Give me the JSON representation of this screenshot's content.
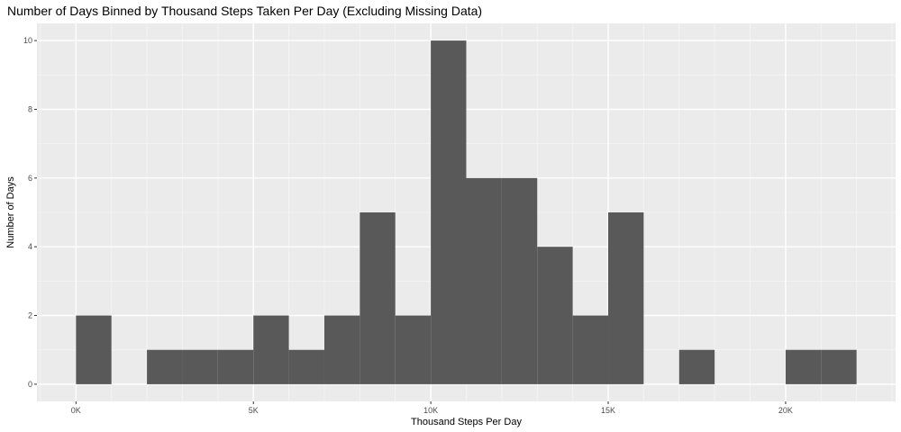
{
  "chart_data": {
    "type": "bar",
    "title": "Number of Days Binned by Thousand Steps Taken Per Day (Excluding Missing Data)",
    "xlabel": "Thousand Steps Per Day",
    "ylabel": "Number of Days",
    "xlim": [
      -1100,
      23100
    ],
    "ylim": [
      -0.5,
      10.5
    ],
    "x_ticks": [
      {
        "value": 0,
        "label": "0K"
      },
      {
        "value": 5000,
        "label": "5K"
      },
      {
        "value": 10000,
        "label": "10K"
      },
      {
        "value": 15000,
        "label": "15K"
      },
      {
        "value": 20000,
        "label": "20K"
      }
    ],
    "y_ticks": [
      {
        "value": 0,
        "label": "0"
      },
      {
        "value": 2,
        "label": "2"
      },
      {
        "value": 4,
        "label": "4"
      },
      {
        "value": 6,
        "label": "6"
      },
      {
        "value": 8,
        "label": "8"
      },
      {
        "value": 10,
        "label": "10"
      }
    ],
    "bin_width": 1000,
    "bins": [
      {
        "start": 0,
        "end": 1000,
        "count": 2
      },
      {
        "start": 1000,
        "end": 2000,
        "count": 0
      },
      {
        "start": 2000,
        "end": 3000,
        "count": 1
      },
      {
        "start": 3000,
        "end": 4000,
        "count": 1
      },
      {
        "start": 4000,
        "end": 5000,
        "count": 1
      },
      {
        "start": 5000,
        "end": 6000,
        "count": 2
      },
      {
        "start": 6000,
        "end": 7000,
        "count": 1
      },
      {
        "start": 7000,
        "end": 8000,
        "count": 2
      },
      {
        "start": 8000,
        "end": 9000,
        "count": 5
      },
      {
        "start": 9000,
        "end": 10000,
        "count": 2
      },
      {
        "start": 10000,
        "end": 11000,
        "count": 10
      },
      {
        "start": 11000,
        "end": 12000,
        "count": 6
      },
      {
        "start": 12000,
        "end": 13000,
        "count": 6
      },
      {
        "start": 13000,
        "end": 14000,
        "count": 4
      },
      {
        "start": 14000,
        "end": 15000,
        "count": 2
      },
      {
        "start": 15000,
        "end": 16000,
        "count": 5
      },
      {
        "start": 16000,
        "end": 17000,
        "count": 0
      },
      {
        "start": 17000,
        "end": 18000,
        "count": 1
      },
      {
        "start": 18000,
        "end": 19000,
        "count": 0
      },
      {
        "start": 19000,
        "end": 20000,
        "count": 0
      },
      {
        "start": 20000,
        "end": 21000,
        "count": 1
      },
      {
        "start": 21000,
        "end": 22000,
        "count": 1
      }
    ],
    "grid": true,
    "legend": "none",
    "colors": {
      "panel_background": "#ebebeb",
      "grid_major": "#ffffff",
      "grid_minor": "#f5f5f5",
      "bar_fill": "#595959",
      "tick_text": "#4d4d4d",
      "tick_mark": "#333333"
    }
  }
}
